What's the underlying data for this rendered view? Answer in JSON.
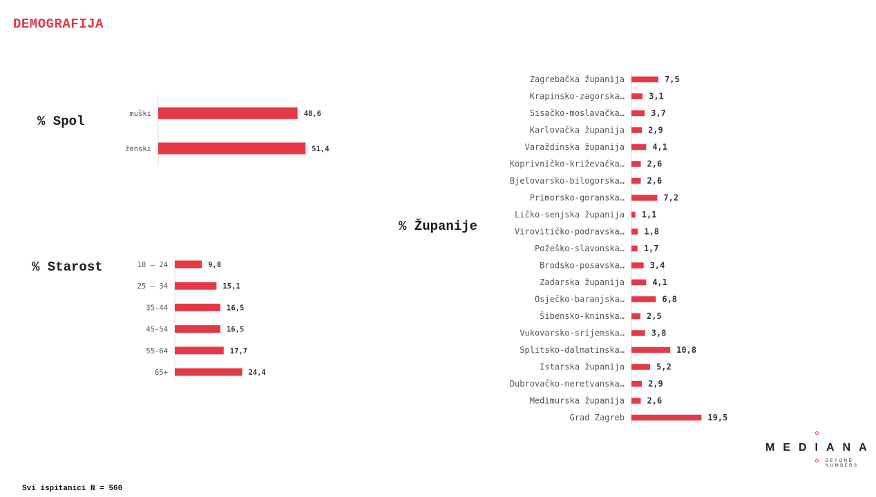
{
  "page": {
    "title": "DEMOGRAFIJA",
    "footer": "Svi ispitanici N = 560"
  },
  "logo": {
    "name": "MEDIANA",
    "tagline_1": "BEYOND",
    "tagline_2": "NUMBERS"
  },
  "colors": {
    "bar": "#e63946",
    "accent": "#e03a45"
  },
  "chart_data": [
    {
      "type": "bar",
      "orientation": "horizontal",
      "title": "% Spol",
      "categories": [
        "muški",
        "ženski"
      ],
      "values": [
        48.6,
        51.4
      ],
      "value_labels": [
        "48,6",
        "51,4"
      ]
    },
    {
      "type": "bar",
      "orientation": "horizontal",
      "title": "% Starost",
      "categories": [
        "18 – 24",
        "25 – 34",
        "35-44",
        "45-54",
        "55-64",
        "65+"
      ],
      "values": [
        9.8,
        15.1,
        16.5,
        16.5,
        17.7,
        24.4
      ],
      "value_labels": [
        "9,8",
        "15,1",
        "16,5",
        "16,5",
        "17,7",
        "24,4"
      ]
    },
    {
      "type": "bar",
      "orientation": "horizontal",
      "title": "% Županije",
      "categories": [
        "Zagrebačka županija",
        "Krapinsko-zagorska…",
        "Sisačko-moslavačka…",
        "Karlovačka županija",
        "Varaždinska županija",
        "Koprivničko-križevačka…",
        "Bjelovarsko-bilogorska…",
        "Primorsko-goranska…",
        "Ličko-senjska županija",
        "Virovitičko-podravska…",
        "Požeško-slavonska…",
        "Brodsko-posavska…",
        "Zadarska županija",
        "Osječko-baranjska…",
        "Šibensko-kninska…",
        "Vukovarsko-srijemska…",
        "Splitsko-dalmatinska…",
        "Istarska županija",
        "Dubrovačko-neretvanska…",
        "Međimurska županija",
        "Grad Zagreb"
      ],
      "values": [
        7.5,
        3.1,
        3.7,
        2.9,
        4.1,
        2.6,
        2.6,
        7.2,
        1.1,
        1.8,
        1.7,
        3.4,
        4.1,
        6.8,
        2.5,
        3.8,
        10.8,
        5.2,
        2.9,
        2.6,
        19.5
      ],
      "value_labels": [
        "7,5",
        "3,1",
        "3,7",
        "2,9",
        "4,1",
        "2,6",
        "2,6",
        "7,2",
        "1,1",
        "1,8",
        "1,7",
        "3,4",
        "4,1",
        "6,8",
        "2,5",
        "3,8",
        "10,8",
        "5,2",
        "2,9",
        "2,6",
        "19,5"
      ]
    }
  ]
}
